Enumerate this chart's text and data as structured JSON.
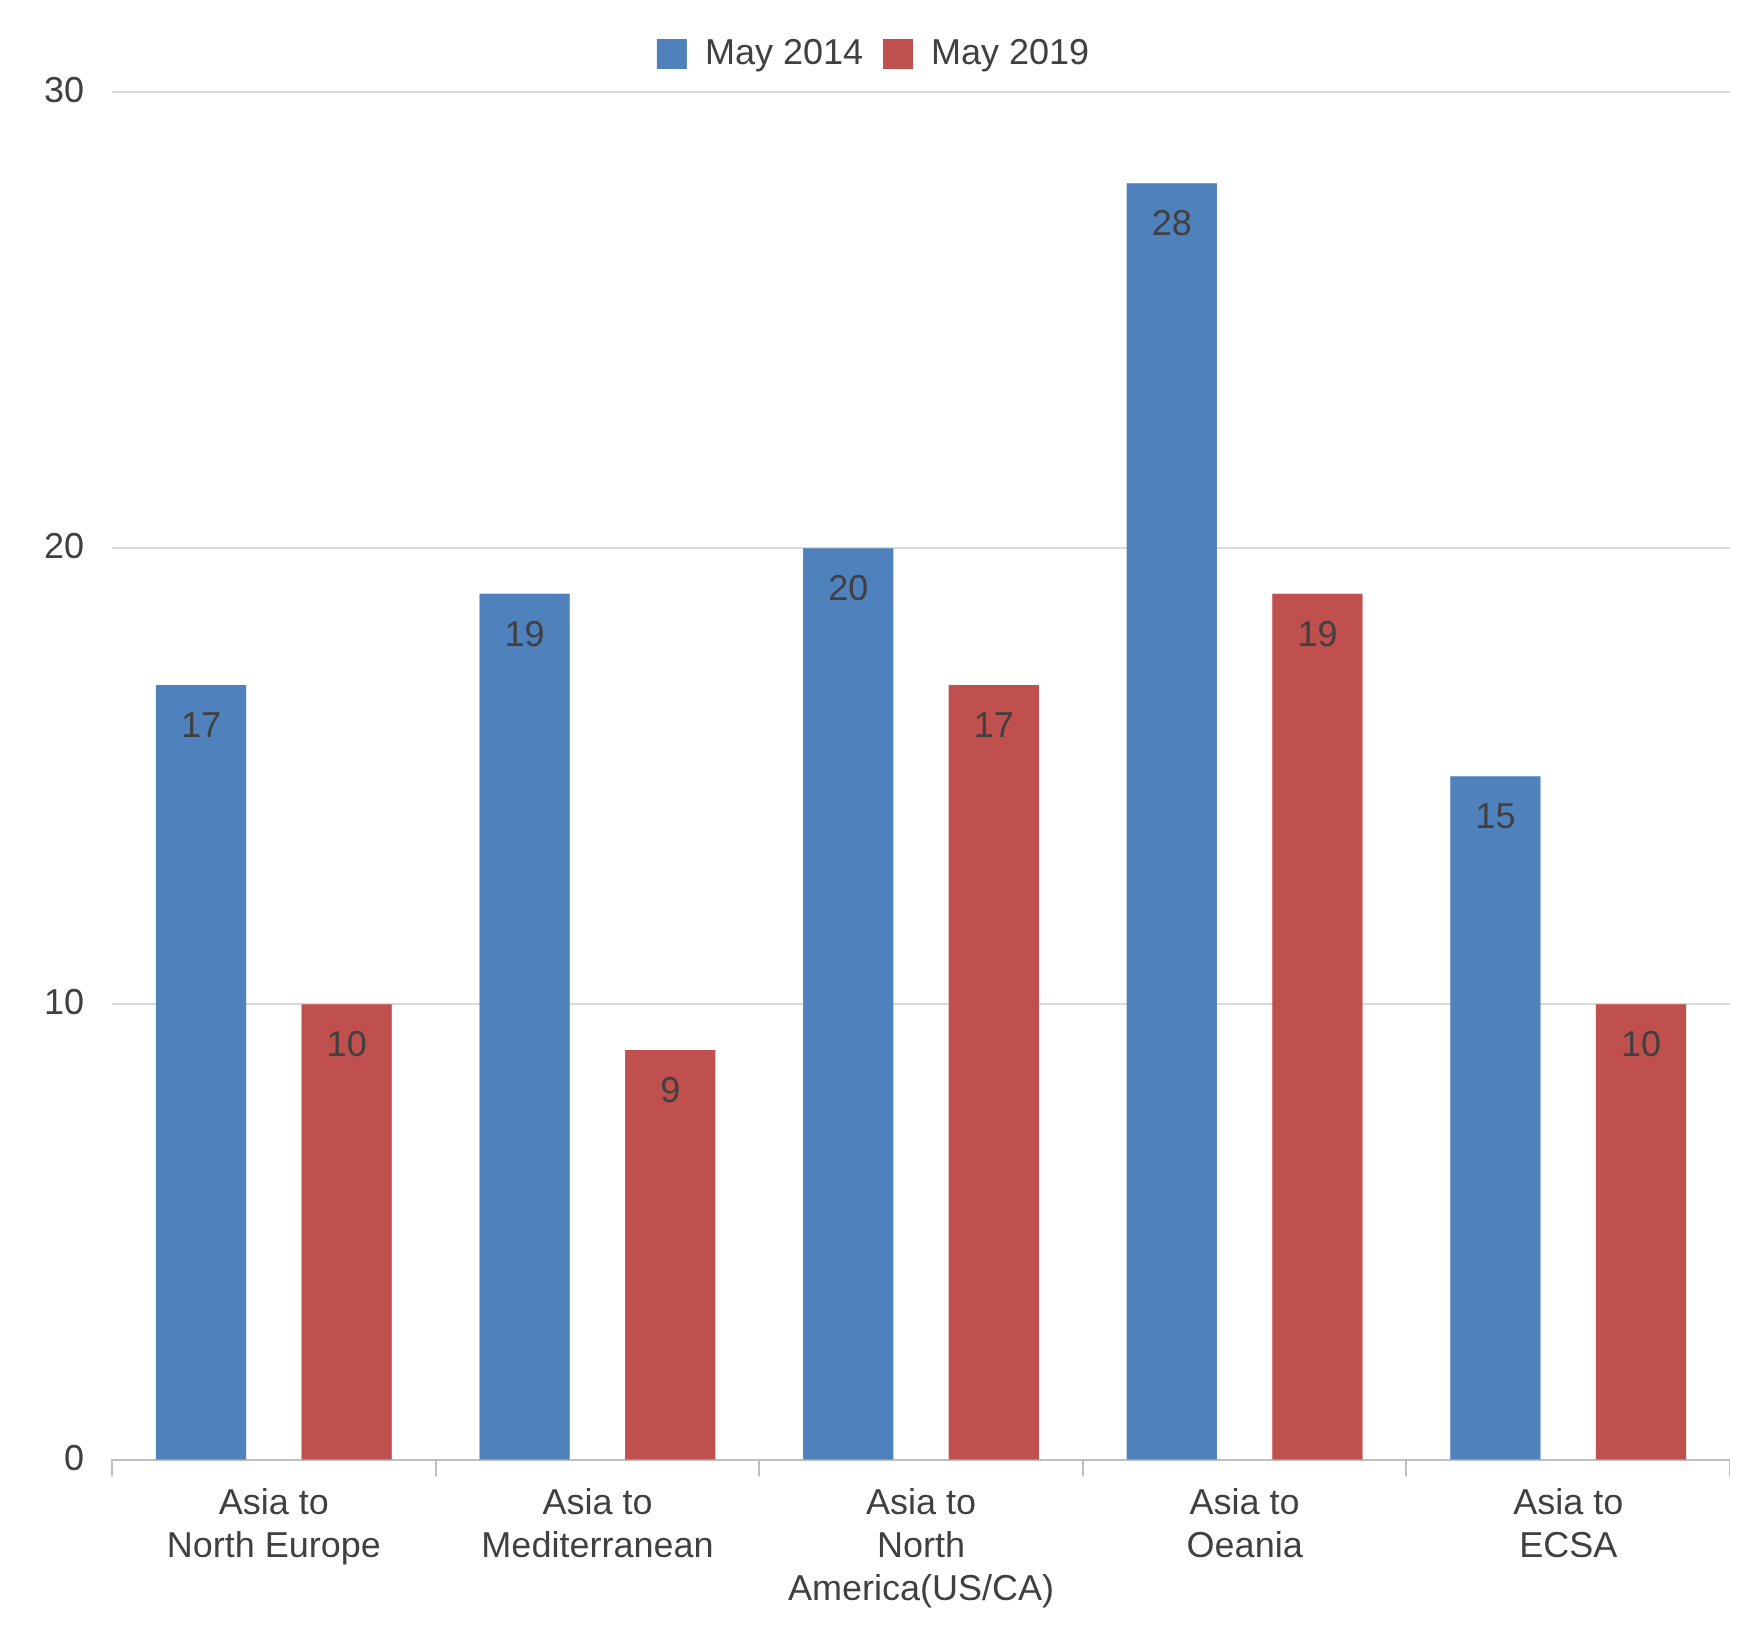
{
  "chart_data": {
    "type": "bar",
    "categories": [
      "Asia to\nNorth Europe",
      "Asia to\nMediterranean",
      "Asia to\nNorth\nAmerica(US/CA)",
      "Asia to\nOeania",
      "Asia to\nECSA"
    ],
    "series": [
      {
        "name": "May 2014",
        "color": "#4f81bd",
        "values": [
          17,
          19,
          20,
          28,
          15
        ]
      },
      {
        "name": "May 2019",
        "color": "#c0504d",
        "values": [
          10,
          9,
          17,
          19,
          10
        ]
      }
    ],
    "ylim": [
      0,
      30
    ],
    "yticks": [
      0,
      10,
      20,
      30
    ],
    "grid": "y",
    "legend": "top",
    "data_labels": true
  }
}
